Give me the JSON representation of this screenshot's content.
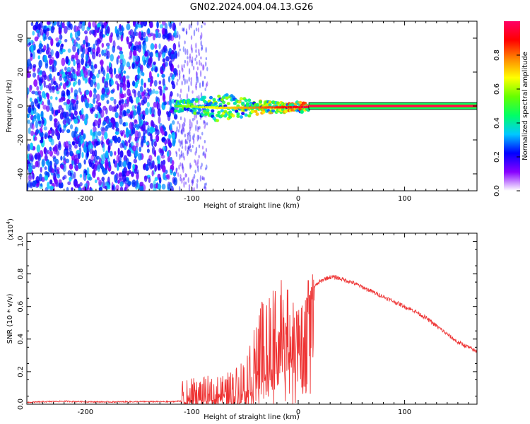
{
  "title": "GN02.2024.004.04.13.G26",
  "chart_data": [
    {
      "type": "heatmap",
      "xlabel": "Height of straight line (km)",
      "ylabel": "Frequency (Hz)",
      "xlim": [
        -255,
        168
      ],
      "ylim": [
        -50,
        50
      ],
      "xticks": [
        -200,
        -100,
        0,
        100
      ],
      "yticks": [
        -40,
        -20,
        0,
        20,
        40
      ],
      "grid": false,
      "regions": [
        {
          "x_from": -255,
          "x_to": -115,
          "description": "diffuse noise spread over all frequencies",
          "amplitude": [
            0.1,
            0.35
          ]
        },
        {
          "x_from": -115,
          "x_to": -85,
          "description": "sparse faint noise",
          "amplitude": [
            0.02,
            0.12
          ]
        },
        {
          "x_from": -115,
          "x_to": 10,
          "description": "signal emerging near 0 Hz, widening down to about -12 Hz near -70 km",
          "amplitude": [
            0.2,
            0.9
          ]
        },
        {
          "x_from": 10,
          "x_to": 168,
          "description": "narrow strong line at 0 Hz",
          "amplitude": [
            0.95,
            1.0
          ]
        }
      ],
      "colorbar": {
        "label": "Normalized spectral amplitude",
        "ticks": [
          "0.0",
          "0.2",
          "0.4",
          "0.6",
          "0.8"
        ],
        "range": [
          0,
          1
        ],
        "colors": [
          "#ffffff",
          "#8800ff",
          "#0000ff",
          "#00c8ff",
          "#00ff66",
          "#66ff00",
          "#ffff00",
          "#ff8800",
          "#ff0000",
          "#ff0066"
        ]
      }
    },
    {
      "type": "line",
      "xlabel": "Height of straight line (km)",
      "ylabel": "SNR (10 * v/v)",
      "yscale_label": "(x10",
      "yscale_exp": "4",
      "yscale_close": ")",
      "xlim": [
        -255,
        168
      ],
      "ylim": [
        0,
        1.05
      ],
      "xticks": [
        -200,
        -100,
        0,
        100
      ],
      "yticks": [
        "0.0",
        "0.2",
        "0.4",
        "0.6",
        "0.8",
        "1.0"
      ],
      "grid": false,
      "color": "#ee3333",
      "x": [
        -255,
        -240,
        -220,
        -200,
        -180,
        -160,
        -140,
        -120,
        -110,
        -100,
        -90,
        -80,
        -70,
        -60,
        -50,
        -45,
        -40,
        -35,
        -30,
        -25,
        -20,
        -15,
        -10,
        -5,
        0,
        5,
        10,
        15,
        20,
        25,
        30,
        35,
        40,
        45,
        50,
        60,
        70,
        80,
        90,
        100,
        110,
        120,
        130,
        140,
        150,
        160,
        168
      ],
      "values": [
        0.01,
        0.015,
        0.018,
        0.015,
        0.014,
        0.015,
        0.016,
        0.015,
        0.02,
        0.04,
        0.05,
        0.06,
        0.07,
        0.09,
        0.15,
        0.2,
        0.25,
        0.3,
        0.35,
        0.4,
        0.45,
        0.5,
        0.45,
        0.42,
        0.42,
        0.55,
        0.65,
        0.72,
        0.75,
        0.77,
        0.78,
        0.78,
        0.77,
        0.76,
        0.75,
        0.72,
        0.69,
        0.66,
        0.63,
        0.6,
        0.57,
        0.53,
        0.48,
        0.43,
        0.38,
        0.35,
        0.32
      ]
    }
  ]
}
